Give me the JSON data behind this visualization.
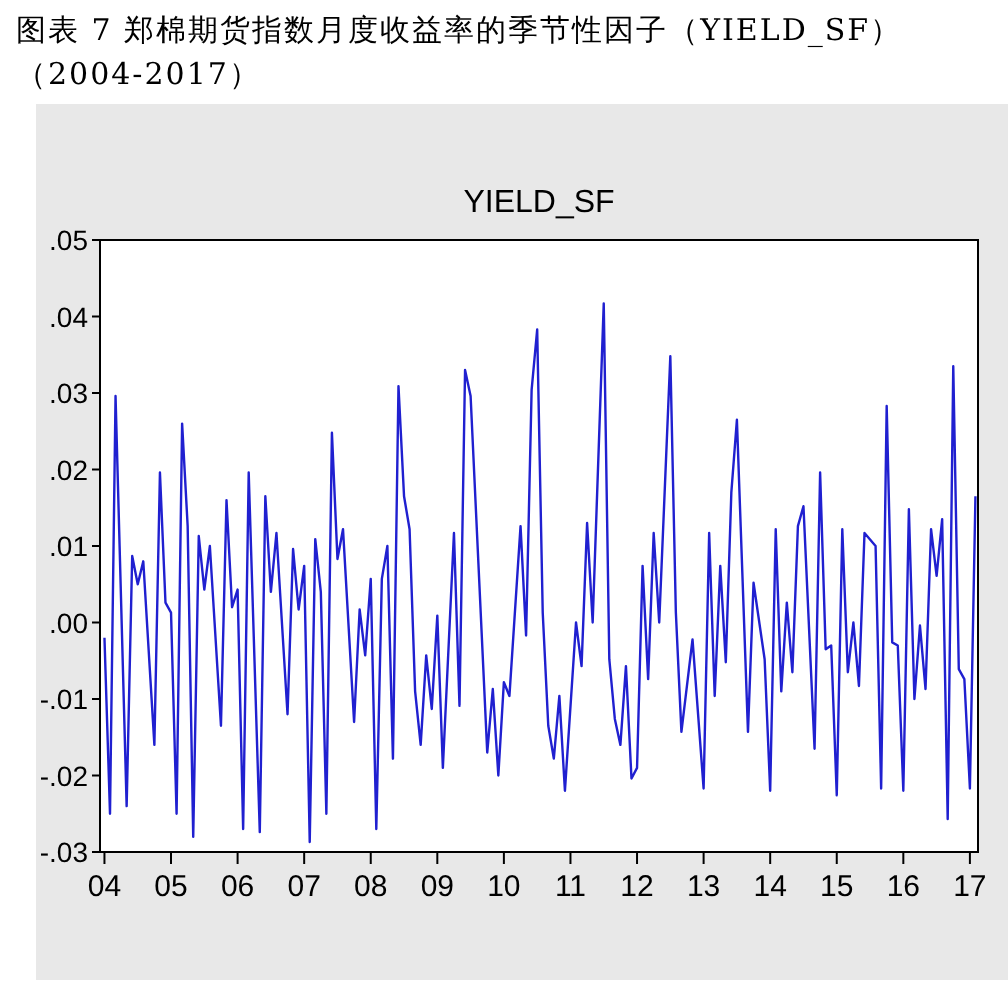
{
  "chart_data": {
    "type": "line",
    "title": "图表 7 郑棉期货指数月度收益率的季节性因子（YIELD_SF）（2004-2017）",
    "subtitle": "YIELD_SF",
    "x": [
      "2004-01",
      "2004-02",
      "2004-03",
      "2004-05",
      "2004-06",
      "2004-07",
      "2004-08",
      "2004-10",
      "2004-11",
      "2004-12",
      "2005-01",
      "2005-02",
      "2005-03",
      "2005-04",
      "2005-05",
      "2005-06",
      "2005-07",
      "2005-08",
      "2005-10",
      "2005-11",
      "2005-12",
      "2006-01",
      "2006-02",
      "2006-03",
      "2006-05",
      "2006-06",
      "2006-07",
      "2006-08",
      "2006-10",
      "2006-11",
      "2006-12",
      "2007-01",
      "2007-02",
      "2007-03",
      "2007-04",
      "2007-05",
      "2007-06",
      "2007-07",
      "2007-08",
      "2007-10",
      "2007-11",
      "2007-12",
      "2008-01",
      "2008-02",
      "2008-03",
      "2008-04",
      "2008-05",
      "2008-06",
      "2008-07",
      "2008-08",
      "2008-09",
      "2008-10",
      "2008-11",
      "2008-12",
      "2009-01",
      "2009-02",
      "2009-04",
      "2009-05",
      "2009-06",
      "2009-07",
      "2009-10",
      "2009-11",
      "2009-12",
      "2010-01",
      "2010-02",
      "2010-04",
      "2010-05",
      "2010-06",
      "2010-07",
      "2010-08",
      "2010-09",
      "2010-10",
      "2010-11",
      "2010-12",
      "2011-02",
      "2011-03",
      "2011-04",
      "2011-05",
      "2011-07",
      "2011-08",
      "2011-09",
      "2011-10",
      "2011-11",
      "2011-12",
      "2012-01",
      "2012-02",
      "2012-03",
      "2012-04",
      "2012-05",
      "2012-07",
      "2012-08",
      "2012-09",
      "2012-11",
      "2013-01",
      "2013-02",
      "2013-03",
      "2013-04",
      "2013-05",
      "2013-06",
      "2013-07",
      "2013-09",
      "2013-10",
      "2013-12",
      "2014-01",
      "2014-02",
      "2014-03",
      "2014-04",
      "2014-05",
      "2014-06",
      "2014-07",
      "2014-09",
      "2014-10",
      "2014-11",
      "2014-12",
      "2015-01",
      "2015-02",
      "2015-03",
      "2015-04",
      "2015-05",
      "2015-06",
      "2015-08",
      "2015-09",
      "2015-10",
      "2015-11",
      "2015-12",
      "2016-01",
      "2016-02",
      "2016-03",
      "2016-04",
      "2016-05",
      "2016-06",
      "2016-07",
      "2016-08",
      "2016-09",
      "2016-10",
      "2016-11",
      "2016-12",
      "2017-01",
      "2017-02"
    ],
    "series": [
      {
        "color": "#2020d0",
        "values": [
          -0.002,
          -0.025,
          0.0296,
          -0.024,
          0.0087,
          0.005,
          0.008,
          -0.016,
          0.0196,
          0.0026,
          0.0013,
          -0.025,
          0.026,
          0.0126,
          -0.028,
          0.0113,
          0.0043,
          0.01,
          -0.0135,
          0.016,
          0.002,
          0.0043,
          -0.027,
          0.0196,
          -0.0274,
          0.0165,
          0.004,
          0.0117,
          -0.012,
          0.0096,
          0.0017,
          0.0074,
          -0.0287,
          0.0109,
          0.004,
          -0.025,
          0.0248,
          0.0083,
          0.0122,
          -0.013,
          0.0017,
          -0.0043,
          0.0057,
          -0.027,
          0.0057,
          0.01,
          -0.0178,
          0.0309,
          0.0165,
          0.0122,
          -0.009,
          -0.016,
          -0.0043,
          -0.0113,
          0.0009,
          -0.019,
          0.0117,
          -0.0109,
          0.033,
          0.0296,
          -0.017,
          -0.0087,
          -0.02,
          -0.0078,
          -0.0096,
          0.0126,
          -0.0017,
          0.0304,
          0.0383,
          0.0013,
          -0.0135,
          -0.0178,
          -0.0096,
          -0.022,
          0.0,
          -0.0057,
          0.013,
          0.0,
          0.0417,
          -0.0048,
          -0.0126,
          -0.016,
          -0.0057,
          -0.0204,
          -0.019,
          0.0074,
          -0.0074,
          0.0117,
          0.0,
          0.0348,
          0.0013,
          -0.0143,
          -0.0022,
          -0.0217,
          0.0117,
          -0.0096,
          0.0074,
          -0.0052,
          0.017,
          0.0265,
          -0.0143,
          0.0052,
          -0.0048,
          -0.022,
          0.0122,
          -0.009,
          0.0026,
          -0.0065,
          0.0126,
          0.0152,
          -0.0165,
          0.0196,
          -0.0035,
          -0.003,
          -0.0226,
          0.0122,
          -0.0065,
          0.0,
          -0.0083,
          0.0117,
          0.01,
          -0.0217,
          0.0283,
          -0.0026,
          -0.003,
          -0.022,
          0.0148,
          -0.01,
          -0.0004,
          -0.0087,
          0.0122,
          0.0061,
          0.0135,
          -0.0257,
          0.0335,
          -0.0061,
          -0.0074,
          -0.0217,
          0.0165
        ]
      }
    ],
    "xlim": [
      "2003-12-07",
      "2017-02-15"
    ],
    "xticks": [
      {
        "value": "2004",
        "label": "04"
      },
      {
        "value": "2005",
        "label": "05"
      },
      {
        "value": "2006",
        "label": "06"
      },
      {
        "value": "2007",
        "label": "07"
      },
      {
        "value": "2008",
        "label": "08"
      },
      {
        "value": "2009",
        "label": "09"
      },
      {
        "value": "2010",
        "label": "10"
      },
      {
        "value": "2011",
        "label": "11"
      },
      {
        "value": "2012",
        "label": "12"
      },
      {
        "value": "2013",
        "label": "13"
      },
      {
        "value": "2014",
        "label": "14"
      },
      {
        "value": "2015",
        "label": "15"
      },
      {
        "value": "2016",
        "label": "16"
      },
      {
        "value": "2017",
        "label": "17"
      }
    ],
    "ylim": [
      -0.03,
      0.05
    ],
    "yticks": [
      {
        "value": -0.03,
        "label": "-.03"
      },
      {
        "value": -0.02,
        "label": "-.02"
      },
      {
        "value": -0.01,
        "label": "-.01"
      },
      {
        "value": 0,
        "label": ".00"
      },
      {
        "value": 0.01,
        "label": ".01"
      },
      {
        "value": 0.02,
        "label": ".02"
      },
      {
        "value": 0.03,
        "label": ".03"
      },
      {
        "value": 0.04,
        "label": ".04"
      },
      {
        "value": 0.05,
        "label": ".05"
      }
    ],
    "grid": false
  }
}
